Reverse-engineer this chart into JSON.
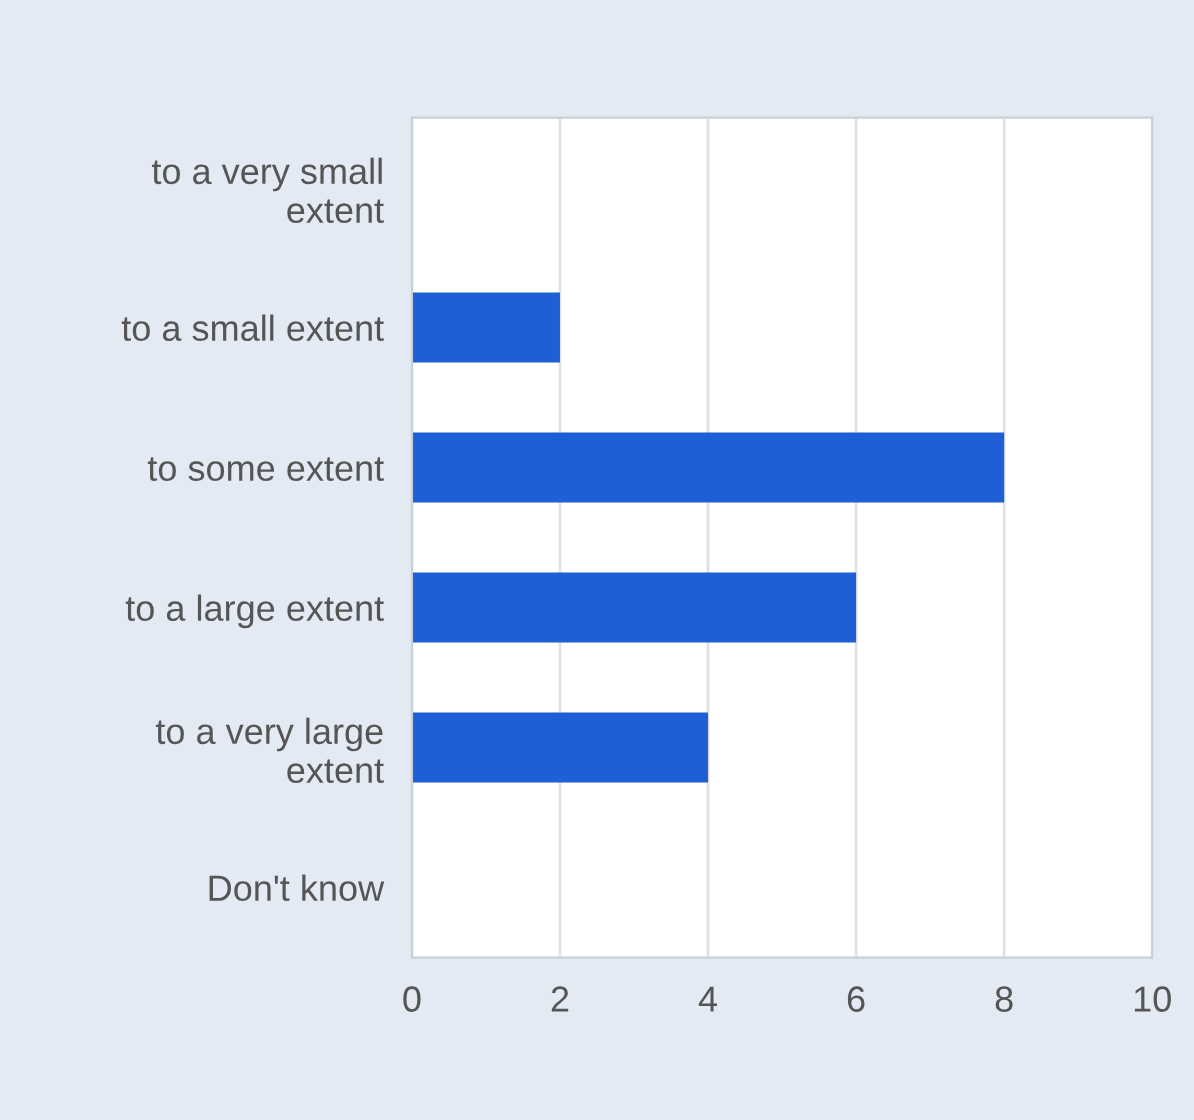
{
  "chart_data": {
    "type": "bar",
    "orientation": "horizontal",
    "categories": [
      "to a very small\nextent",
      "to a small extent",
      "to some extent",
      "to a large extent",
      "to a very large\nextent",
      "Don't know"
    ],
    "series": [
      {
        "color": "#1f5fd6",
        "values": [
          0,
          2,
          8,
          6,
          4,
          0
        ]
      }
    ],
    "xlim": [
      0,
      10
    ],
    "xticks": [
      0,
      2,
      4,
      6,
      8,
      10
    ],
    "grid": "x"
  }
}
